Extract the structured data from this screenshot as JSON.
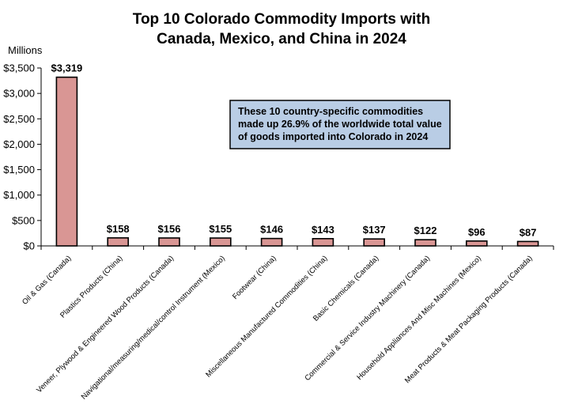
{
  "chart_data": {
    "type": "bar",
    "title": [
      "Top 10 Colorado Commodity Imports with",
      "Canada, Mexico, and China in 2024"
    ],
    "unit_label": "Millions",
    "categories": [
      "Oil & Gas (Canada)",
      "Plastics Products (China)",
      "Veneer, Plywood & Engineered Wood Products (Canada)",
      "Navigational/measuring/medical/control Instrument (Mexico)",
      "Footwear (China)",
      "Miscellaneous Manufactured Commodities (China)",
      "Basic Chemicals (Canada)",
      "Commercial & Service Industry Machinery (Canada)",
      "Household Appliances And Misc Machines (Mexico)",
      "Meat Products & Meat Packaging Products (Canada)"
    ],
    "values": [
      3319,
      158,
      156,
      155,
      146,
      143,
      137,
      122,
      96,
      87
    ],
    "data_labels": [
      "$3,319",
      "$158",
      "$156",
      "$155",
      "$146",
      "$143",
      "$137",
      "$122",
      "$96",
      "$87"
    ],
    "y_ticks": [
      "$0",
      "$500",
      "$1,000",
      "$1,500",
      "$2,000",
      "$2,500",
      "$3,000",
      "$3,500"
    ],
    "ylim": [
      0,
      3500
    ],
    "grid": false,
    "legend": "none",
    "annotation": [
      "These 10 country-specific commodities",
      "made up 26.9% of the worldwide total value",
      "of goods imported into Colorado in 2024"
    ],
    "colors": {
      "bar_fill": "#d99694",
      "bar_stroke": "#000000",
      "annotation_fill": "#b9cde5",
      "annotation_stroke": "#000000"
    }
  }
}
